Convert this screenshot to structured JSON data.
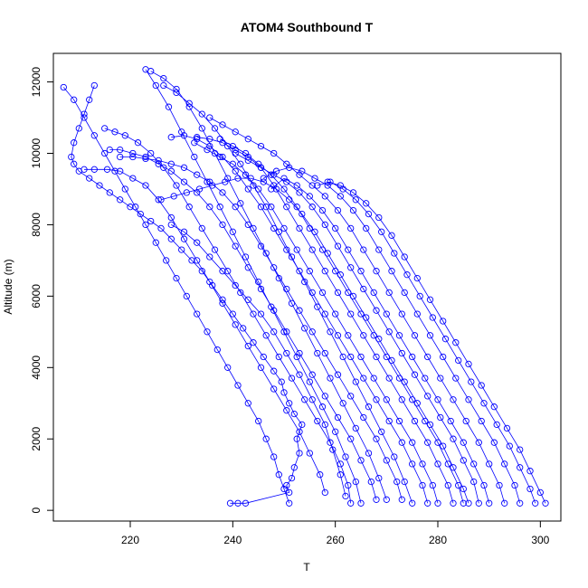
{
  "chart_data": {
    "type": "line",
    "title": "ATOM4 Southbound T",
    "xlabel": "T",
    "ylabel": "Altitude (m)",
    "xlim": [
      205,
      304
    ],
    "ylim": [
      -300,
      12800
    ],
    "xticks": [
      220,
      240,
      260,
      280,
      300
    ],
    "yticks": [
      0,
      2000,
      4000,
      6000,
      8000,
      10000,
      12000
    ],
    "color": "#0000ff",
    "marker": "open-circle",
    "grid": false,
    "series": [
      {
        "x": [
          239.5,
          241,
          242.5,
          251,
          250.5,
          251.5,
          252,
          253,
          252.5,
          253.5,
          252,
          251,
          250,
          249.5,
          248,
          246,
          244,
          242,
          240,
          238,
          236,
          234,
          232,
          230,
          228,
          226,
          224,
          222,
          220,
          218,
          216,
          214,
          212,
          210,
          209,
          208.5,
          209,
          210,
          211,
          212,
          213
        ],
        "y": [
          200,
          200,
          200,
          500,
          700,
          900,
          1200,
          1600,
          2000,
          2400,
          2700,
          3000,
          3300,
          3600,
          3900,
          4300,
          4700,
          5100,
          5500,
          5900,
          6300,
          6700,
          7000,
          7300,
          7600,
          7900,
          8100,
          8300,
          8500,
          8700,
          8900,
          9100,
          9300,
          9500,
          9700,
          9900,
          10300,
          10700,
          11100,
          11500,
          11900
        ]
      },
      {
        "x": [
          251,
          250,
          249,
          248,
          246.5,
          245,
          243,
          241,
          239,
          237,
          235,
          233,
          231,
          229,
          227,
          225,
          223,
          221,
          219,
          217,
          215,
          213,
          211,
          209,
          207
        ],
        "y": [
          200,
          600,
          1000,
          1500,
          2000,
          2500,
          3000,
          3500,
          4000,
          4500,
          5000,
          5500,
          6000,
          6500,
          7000,
          7500,
          8000,
          8500,
          9000,
          9500,
          10000,
          10500,
          11000,
          11500,
          11850
        ]
      },
      {
        "x": [
          263,
          262.5,
          261,
          259,
          256.5,
          254,
          251.5,
          249,
          246.5,
          244,
          241.5,
          239,
          236.5,
          234,
          231.5,
          229,
          226.5,
          224,
          221.5,
          219,
          217,
          215
        ],
        "y": [
          200,
          700,
          1300,
          1900,
          2500,
          3100,
          3700,
          4300,
          4900,
          5500,
          6100,
          6700,
          7300,
          7900,
          8500,
          9100,
          9600,
          10000,
          10300,
          10500,
          10600,
          10700
        ]
      },
      {
        "x": [
          265,
          264,
          262,
          260,
          257.5,
          255,
          252.5,
          250,
          247.5,
          245,
          242.5,
          240,
          237.5,
          235,
          232.5,
          230,
          227.5,
          225,
          223
        ],
        "y": [
          200,
          800,
          1500,
          2200,
          2900,
          3600,
          4300,
          5000,
          5700,
          6400,
          7100,
          7800,
          8500,
          9200,
          9900,
          10600,
          11300,
          11900,
          12350
        ]
      },
      {
        "x": [
          270,
          268.5,
          266.5,
          264,
          261.5,
          259,
          256.5,
          254,
          251.5,
          249,
          246.5,
          244,
          241.5,
          239,
          236.5,
          234,
          231.5,
          229,
          226.5,
          224
        ],
        "y": [
          300,
          900,
          1600,
          2300,
          3000,
          3700,
          4400,
          5100,
          5800,
          6500,
          7200,
          7900,
          8600,
          9300,
          10000,
          10700,
          11300,
          11800,
          12100,
          12300
        ]
      },
      {
        "x": [
          275,
          273.5,
          271.5,
          269,
          266.5,
          264,
          261.5,
          259,
          256.5,
          254,
          251.5,
          249,
          246.5,
          244,
          241.5,
          239,
          236.5,
          234,
          231.5,
          229,
          226.5
        ],
        "y": [
          200,
          800,
          1500,
          2200,
          2900,
          3600,
          4300,
          5000,
          5700,
          6400,
          7100,
          7800,
          8500,
          9100,
          9700,
          10200,
          10700,
          11100,
          11400,
          11700,
          11900
        ]
      },
      {
        "x": [
          278,
          277,
          275,
          273,
          270.5,
          268,
          265.5,
          263,
          260.5,
          258,
          255.5,
          253,
          250.5,
          248,
          245.5,
          243,
          240.5,
          238,
          235.5,
          233,
          230.5,
          228
        ],
        "y": [
          200,
          700,
          1300,
          1900,
          2500,
          3100,
          3700,
          4300,
          4900,
          5500,
          6100,
          6700,
          7300,
          7900,
          8500,
          9000,
          9500,
          9900,
          10200,
          10400,
          10500,
          10450
        ]
      },
      {
        "x": [
          280,
          279,
          277,
          275,
          272.5,
          270,
          267.5,
          265,
          262.5,
          260,
          257.5,
          255,
          252.5,
          250,
          247.5,
          245,
          242.5,
          240,
          237.5,
          235,
          232.5
        ],
        "y": [
          200,
          700,
          1300,
          1900,
          2500,
          3100,
          3700,
          4300,
          4900,
          5500,
          6100,
          6700,
          7300,
          7900,
          8500,
          9000,
          9400,
          9700,
          9900,
          10100,
          10300
        ]
      },
      {
        "x": [
          283,
          282,
          280,
          278,
          275.5,
          273,
          270.5,
          268,
          265.5,
          263,
          260.5,
          258,
          255.5,
          253,
          250.5,
          248,
          245.5,
          243,
          240.5,
          238,
          235.5,
          233
        ],
        "y": [
          200,
          700,
          1300,
          1900,
          2500,
          3100,
          3700,
          4300,
          4900,
          5500,
          6100,
          6700,
          7300,
          7900,
          8500,
          9100,
          9600,
          9900,
          10100,
          10300,
          10400,
          10450
        ]
      },
      {
        "x": [
          285,
          284,
          282,
          280,
          277.5,
          275,
          272.5,
          270,
          267.5,
          265,
          262.5,
          260,
          257.5,
          255,
          252.5,
          250,
          247.5,
          245,
          242.5,
          240,
          237.5
        ],
        "y": [
          200,
          700,
          1300,
          1900,
          2500,
          3100,
          3700,
          4300,
          4900,
          5500,
          6100,
          6700,
          7300,
          7900,
          8500,
          9000,
          9400,
          9700,
          10000,
          10200,
          10400
        ]
      },
      {
        "x": [
          288,
          287,
          285,
          283,
          280.5,
          278,
          275.5,
          273,
          270.5,
          268,
          265.5,
          263,
          260.5,
          258,
          255.5,
          253,
          250.5,
          248,
          245.5,
          243,
          240.5
        ],
        "y": [
          200,
          800,
          1400,
          2000,
          2600,
          3200,
          3800,
          4400,
          5000,
          5600,
          6200,
          6800,
          7400,
          8000,
          8500,
          8900,
          9200,
          9400,
          9600,
          9800,
          10000
        ]
      },
      {
        "x": [
          290,
          289,
          287,
          285,
          282.5,
          280,
          277.5,
          275,
          272.5,
          270,
          267.5,
          265,
          262.5,
          260,
          257.5,
          255,
          252.5,
          250,
          247.5
        ],
        "y": [
          200,
          700,
          1300,
          1900,
          2500,
          3100,
          3700,
          4300,
          4900,
          5500,
          6100,
          6700,
          7300,
          7900,
          8400,
          8800,
          9100,
          9300,
          9000
        ]
      },
      {
        "x": [
          293,
          292,
          290,
          288,
          285.5,
          283,
          280.5,
          278,
          275.5,
          273,
          270.5,
          268,
          265.5,
          263,
          260.5,
          258,
          255.5,
          253,
          250.5,
          248,
          245.5,
          243,
          240.5,
          238,
          235.5
        ],
        "y": [
          200,
          700,
          1300,
          1900,
          2500,
          3100,
          3700,
          4300,
          4900,
          5500,
          6100,
          6700,
          7300,
          7900,
          8400,
          8800,
          9100,
          9400,
          9700,
          10000,
          10200,
          10400,
          10600,
          10800,
          11000
        ]
      },
      {
        "x": [
          296,
          295,
          293,
          291,
          288.5,
          286,
          283.5,
          281,
          278.5,
          276,
          273.5,
          271,
          268.5,
          266,
          263.5,
          261,
          258.5,
          256,
          253.5,
          251,
          248.5,
          246
        ],
        "y": [
          200,
          700,
          1300,
          1900,
          2500,
          3100,
          3700,
          4300,
          4900,
          5500,
          6100,
          6700,
          7300,
          7900,
          8400,
          8800,
          9100,
          9300,
          9500,
          9600,
          9500,
          9300
        ]
      },
      {
        "x": [
          299,
          298,
          296,
          294,
          291.5,
          289,
          286.5,
          284,
          281.5,
          279,
          276.5,
          274,
          271.5,
          269,
          266.5,
          264,
          261.5,
          259,
          256.5
        ],
        "y": [
          200,
          600,
          1200,
          1800,
          2400,
          3000,
          3600,
          4200,
          4800,
          5400,
          6000,
          6600,
          7200,
          7800,
          8300,
          8700,
          9000,
          9200,
          9100
        ]
      },
      {
        "x": [
          301,
          300,
          298,
          296,
          293.5,
          291,
          288.5,
          286,
          283.5,
          281,
          278.5,
          276,
          273.5,
          271,
          268.5,
          266,
          263.5,
          261,
          258.5
        ],
        "y": [
          200,
          500,
          1100,
          1700,
          2300,
          2900,
          3500,
          4100,
          4700,
          5300,
          5900,
          6500,
          7100,
          7700,
          8200,
          8600,
          8900,
          9100,
          9200
        ]
      },
      {
        "x": [
          268,
          267,
          265,
          263,
          260.5,
          258,
          255.5,
          253,
          250.5,
          248,
          245.5,
          243,
          240.5,
          238,
          235.5,
          233,
          230.5,
          228,
          225.5,
          223,
          220.5,
          218,
          216
        ],
        "y": [
          300,
          800,
          1400,
          2000,
          2600,
          3200,
          3800,
          4400,
          5000,
          5600,
          6200,
          6800,
          7400,
          8000,
          8500,
          8900,
          9200,
          9500,
          9700,
          9900,
          10000,
          10100,
          10100
        ]
      },
      {
        "x": [
          258,
          257,
          255,
          253,
          250.5,
          248,
          245.5,
          243,
          240.5,
          238,
          235.5,
          233,
          230.5,
          228,
          225.5,
          223,
          220.5,
          218,
          215.5,
          213,
          211
        ],
        "y": [
          500,
          1000,
          1600,
          2200,
          2800,
          3400,
          4000,
          4600,
          5200,
          5800,
          6400,
          7000,
          7600,
          8200,
          8700,
          9100,
          9300,
          9500,
          9550,
          9550,
          9550
        ]
      },
      {
        "x": [
          273,
          272,
          270,
          268,
          265.5,
          263,
          260.5,
          258,
          255.5,
          253,
          250.5,
          248,
          245.5,
          243,
          240.5,
          238,
          235.5,
          233,
          230.5,
          228,
          225.5,
          223,
          220.5,
          218
        ],
        "y": [
          300,
          800,
          1400,
          2000,
          2600,
          3200,
          3800,
          4400,
          5000,
          5600,
          6200,
          6800,
          7400,
          8000,
          8500,
          8900,
          9200,
          9400,
          9600,
          9700,
          9800,
          9850,
          9900,
          9900
        ]
      },
      {
        "x": [
          286,
          285,
          283,
          281,
          278.5,
          276,
          273.5,
          271,
          268.5,
          266,
          263.5,
          261,
          258.5,
          256,
          253.5,
          251,
          248.5,
          246,
          243.5,
          241,
          238.5,
          236,
          233.5,
          231,
          228.5,
          226
        ],
        "y": [
          200,
          600,
          1200,
          1800,
          2400,
          3000,
          3600,
          4200,
          4800,
          5400,
          6000,
          6600,
          7200,
          7800,
          8300,
          8700,
          9000,
          9200,
          9300,
          9300,
          9200,
          9100,
          9000,
          8900,
          8800,
          8700
        ]
      },
      {
        "x": [
          262,
          261,
          259.5,
          258,
          255.5,
          253,
          250.5,
          248,
          245.5,
          243,
          240.5,
          238,
          235.5,
          233,
          230.5,
          228
        ],
        "y": [
          400,
          1000,
          1700,
          2400,
          3100,
          3800,
          4400,
          5000,
          5500,
          5900,
          6300,
          6700,
          7100,
          7500,
          7800,
          8000
        ]
      }
    ]
  }
}
